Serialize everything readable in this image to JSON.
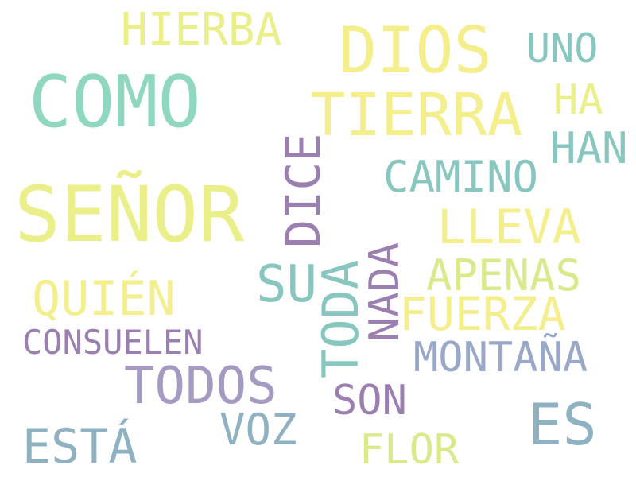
{
  "words": {
    "hierba": "HIERBA",
    "dios": "DIOS",
    "uno": "UNO",
    "como": "COMO",
    "tierra": "TIERRA",
    "ha": "HA",
    "han": "HAN",
    "dice": "DICE",
    "camino": "CAMINO",
    "senor": "SEÑOR",
    "lleva": "LLEVA",
    "nada": "NADA",
    "apenas": "APENAS",
    "su": "SU",
    "toda": "TODA",
    "quien": "QUIÉN",
    "fuerza": "FUERZA",
    "consuelen": "CONSUELEN",
    "montana": "MONTAÑA",
    "todos": "TODOS",
    "son": "SON",
    "es": "ES",
    "esta": "ESTÁ",
    "voz": "VOZ",
    "flor": "FLOR"
  },
  "colors": {
    "yellow": "#f4ef8c",
    "lemon": "#eaef8a",
    "lime": "#d8ea8a",
    "mint": "#8fd8bf",
    "teal": "#88c7c0",
    "steel": "#8fb2c2",
    "slate": "#99a8c8",
    "lavender": "#a49ac2",
    "purple": "#9b7fb0"
  }
}
